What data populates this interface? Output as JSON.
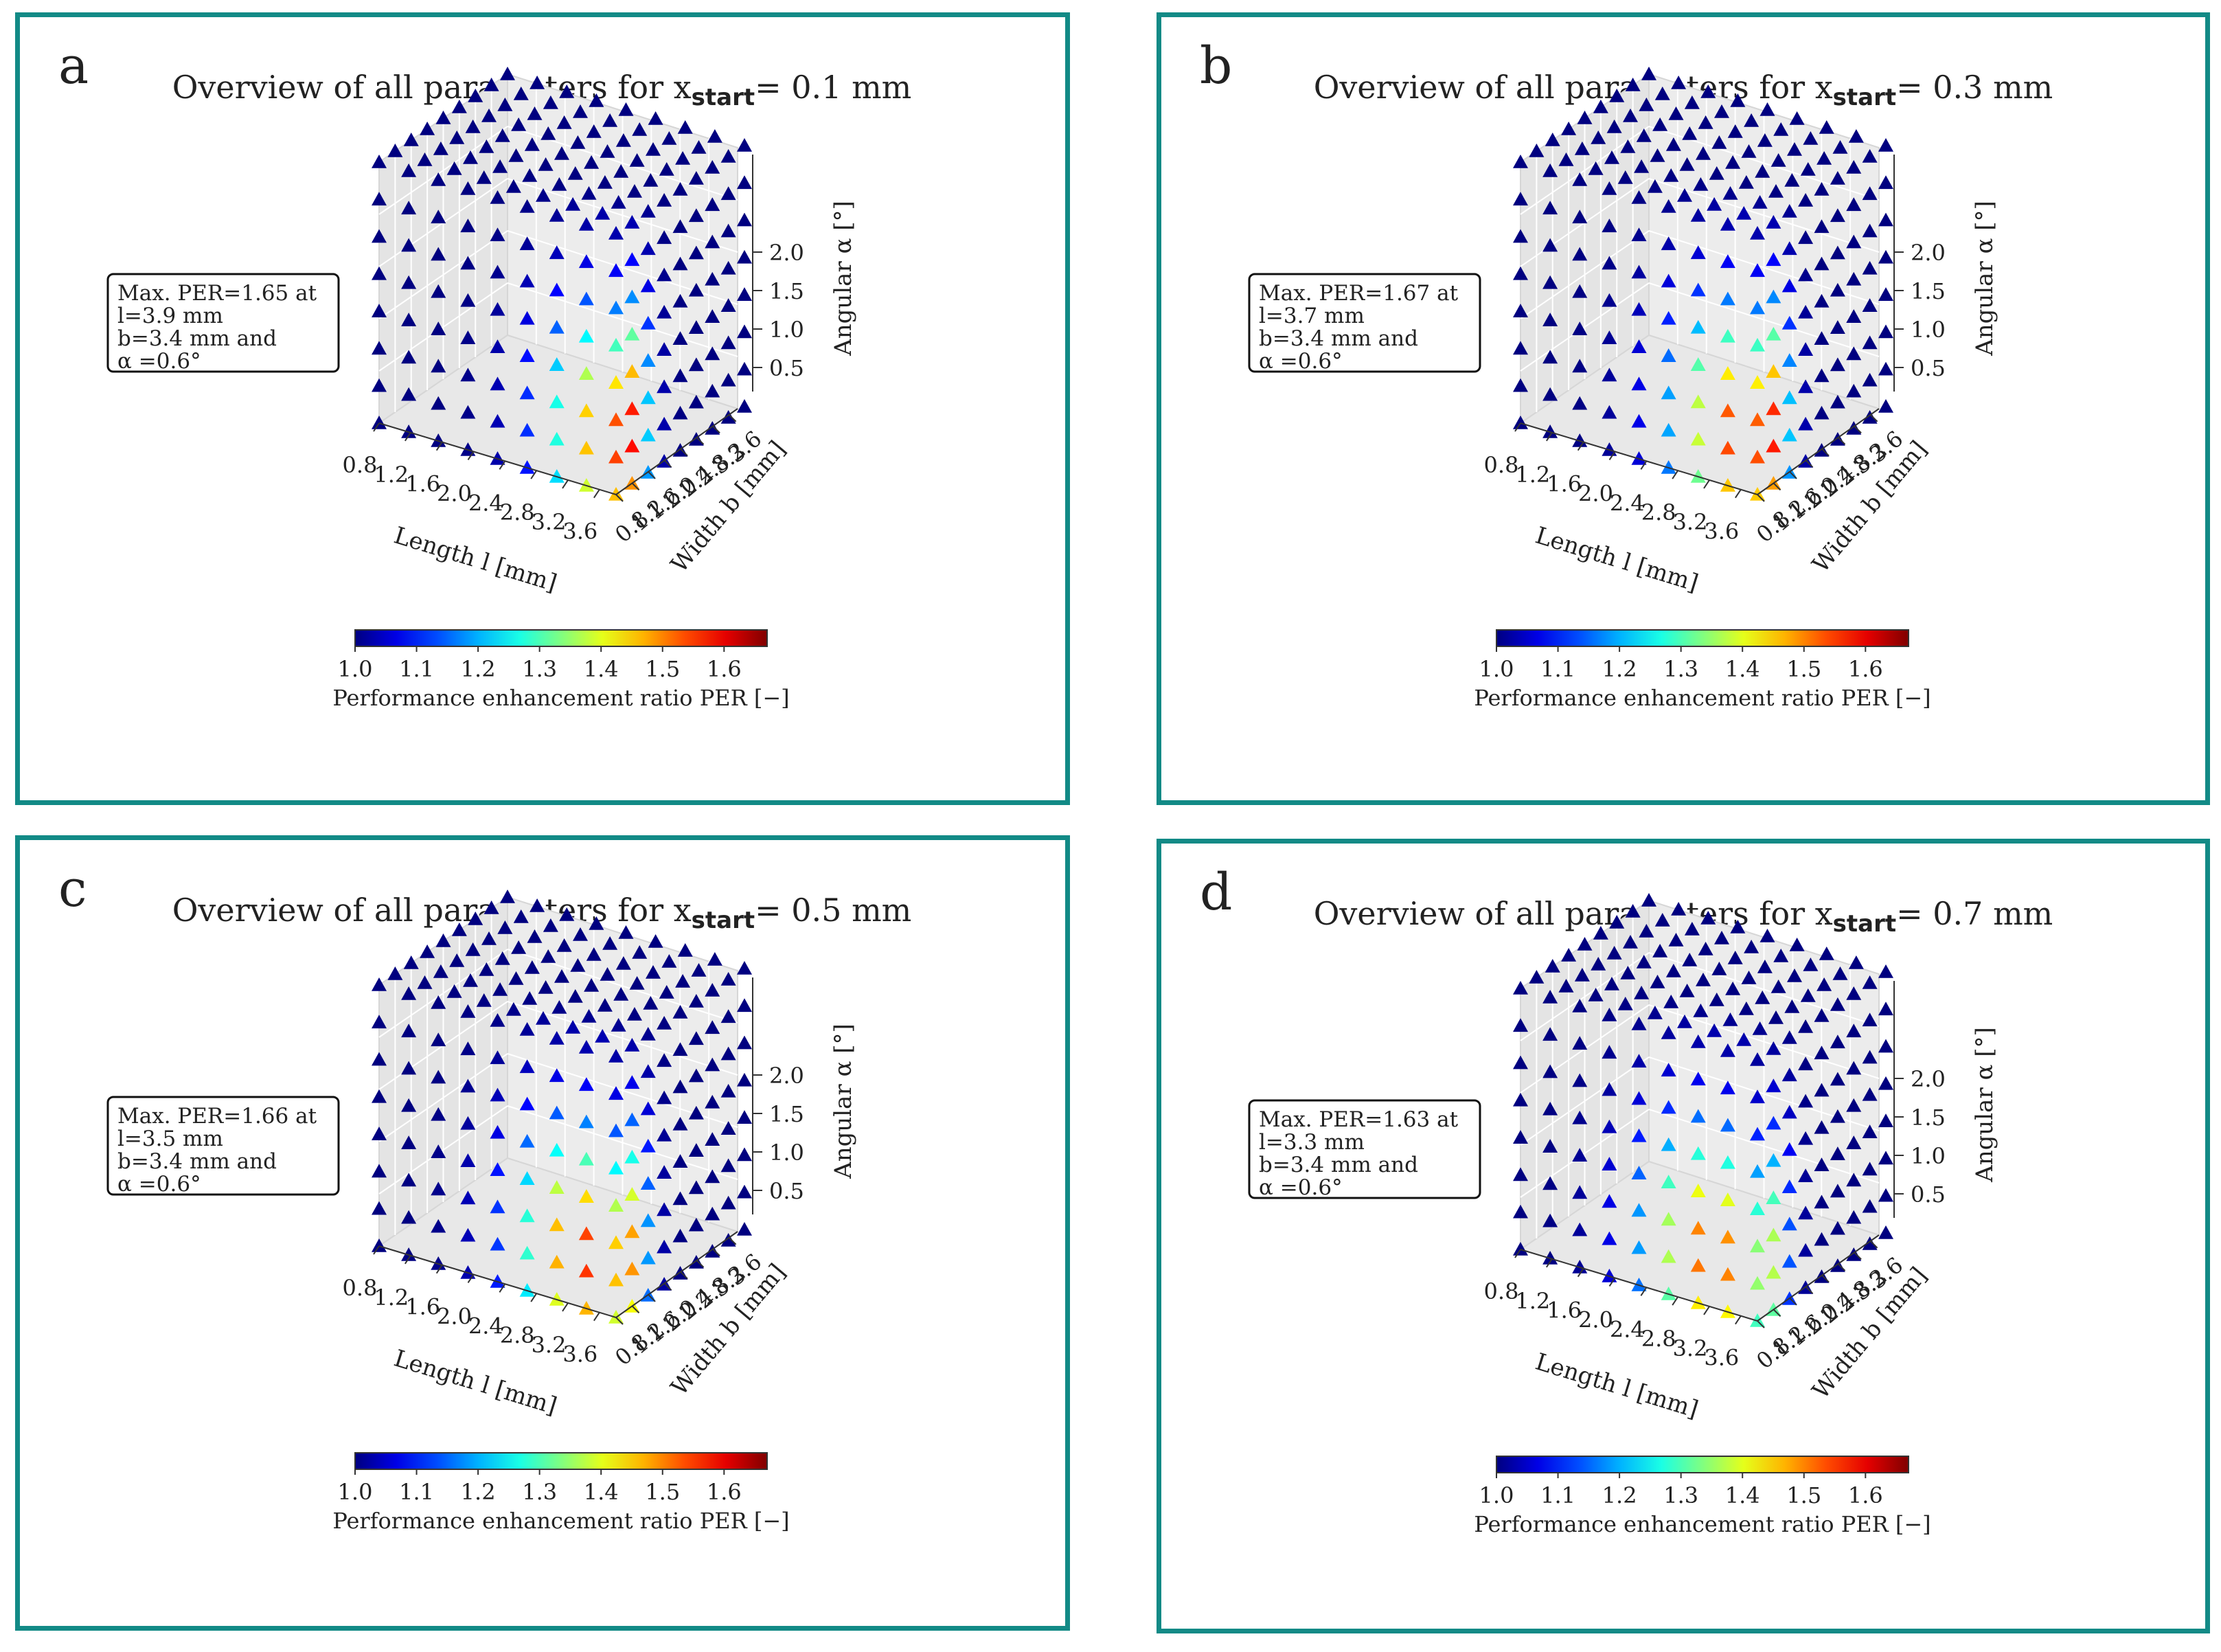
{
  "chart_data": [
    {
      "type": "scatter3d",
      "panel": "a",
      "title_prefix": "Overview of all parameters for x",
      "title_sub": "start",
      "title_suffix": "= 0.1 mm",
      "annotation": [
        "Max. PER=1.65 at",
        "l=3.9 mm",
        "b=3.4 mm and",
        "α =0.6°"
      ],
      "max_point": {
        "PER": 1.65,
        "l": 3.9,
        "b": 3.4,
        "alpha": 0.6
      },
      "xlabel": "Length l [mm]",
      "ylabel": "Width b [mm]",
      "zlabel": "Angular α [°]",
      "xticks": [
        "0.8",
        "1.2",
        "1.6",
        "2.0",
        "2.4",
        "2.8",
        "3.2",
        "3.6"
      ],
      "yticks": [
        "0.8",
        "1.2",
        "1.6",
        "2.0",
        "2.4",
        "2.8",
        "3.2",
        "3.6"
      ],
      "yticks_display": [
        "0.8",
        "1.2",
        "1.6",
        "2.0",
        "2.4",
        "2.8",
        "3.2",
        "3.6"
      ],
      "zticks": [
        "0.5",
        "1.0",
        "1.5",
        "2.0"
      ],
      "xlim": [
        0.8,
        3.9
      ],
      "ylim": [
        0.8,
        3.6
      ],
      "zlim": [
        0.1,
        2.2
      ],
      "colorbar": {
        "ticks": [
          "1.0",
          "1.1",
          "1.2",
          "1.3",
          "1.4",
          "1.5",
          "1.6"
        ],
        "min": 1.0,
        "max": 1.67,
        "label": "Performance enhancement ratio PER [−]",
        "cmap": "jet"
      }
    },
    {
      "type": "scatter3d",
      "panel": "b",
      "title_prefix": "Overview of all parameters for x",
      "title_sub": "start",
      "title_suffix": "= 0.3 mm",
      "annotation": [
        "Max. PER=1.67 at",
        "l=3.7 mm",
        "b=3.4 mm and",
        "α =0.6°"
      ],
      "max_point": {
        "PER": 1.67,
        "l": 3.7,
        "b": 3.4,
        "alpha": 0.6
      },
      "xlabel": "Length l [mm]",
      "ylabel": "Width b [mm]",
      "zlabel": "Angular α [°]",
      "xticks": [
        "0.8",
        "1.2",
        "1.6",
        "2.0",
        "2.4",
        "2.8",
        "3.2",
        "3.6"
      ],
      "yticks": [
        "0.8",
        "1.2",
        "1.6",
        "2.0",
        "2.4",
        "2.8",
        "3.2",
        "3.6"
      ],
      "yticks_display": [
        "0.8",
        "1.2",
        "1.6",
        "2.0",
        "2.4",
        "2.8",
        "3.2",
        "3.6"
      ],
      "zticks": [
        "0.5",
        "1.0",
        "1.5",
        "2.0"
      ],
      "xlim": [
        0.8,
        3.9
      ],
      "ylim": [
        0.8,
        3.6
      ],
      "zlim": [
        0.1,
        2.2
      ],
      "colorbar": {
        "ticks": [
          "1.0",
          "1.1",
          "1.2",
          "1.3",
          "1.4",
          "1.5",
          "1.6"
        ],
        "min": 1.0,
        "max": 1.67,
        "label": "Performance enhancement ratio PER [−]",
        "cmap": "jet"
      }
    },
    {
      "type": "scatter3d",
      "panel": "c",
      "title_prefix": "Overview of all parameters for x",
      "title_sub": "start",
      "title_suffix": "= 0.5 mm",
      "annotation": [
        "Max. PER=1.66 at",
        "l=3.5 mm",
        "b=3.4 mm and",
        "α =0.6°"
      ],
      "max_point": {
        "PER": 1.66,
        "l": 3.5,
        "b": 3.4,
        "alpha": 0.6
      },
      "xlabel": "Length l [mm]",
      "ylabel": "Width b [mm]",
      "zlabel": "Angular α [°]",
      "xticks": [
        "0.8",
        "1.2",
        "1.6",
        "2.0",
        "2.4",
        "2.8",
        "3.2",
        "3.6"
      ],
      "yticks": [
        "0.8",
        "1.2",
        "1.6",
        "2.0",
        "2.4",
        "2.8",
        "3.2",
        "3.6"
      ],
      "yticks_display": [
        "0.8",
        "1.2",
        "1.6",
        "2.0",
        "2.4",
        "2.8",
        "3.2",
        "3.6"
      ],
      "zticks": [
        "0.5",
        "1.0",
        "1.5",
        "2.0"
      ],
      "xlim": [
        0.8,
        3.9
      ],
      "ylim": [
        0.8,
        3.6
      ],
      "zlim": [
        0.1,
        2.2
      ],
      "colorbar": {
        "ticks": [
          "1.0",
          "1.1",
          "1.2",
          "1.3",
          "1.4",
          "1.5",
          "1.6"
        ],
        "min": 1.0,
        "max": 1.67,
        "label": "Performance enhancement ratio PER [−]",
        "cmap": "jet"
      }
    },
    {
      "type": "scatter3d",
      "panel": "d",
      "title_prefix": "Overview of all parameters for x",
      "title_sub": "start",
      "title_suffix": "= 0.7 mm",
      "annotation": [
        "Max. PER=1.63 at",
        "l=3.3 mm",
        "b=3.4 mm and",
        "α =0.6°"
      ],
      "max_point": {
        "PER": 1.63,
        "l": 3.3,
        "b": 3.4,
        "alpha": 0.6
      },
      "xlabel": "Length l [mm]",
      "ylabel": "Width b [mm]",
      "zlabel": "Angular α [°]",
      "xticks": [
        "0.8",
        "1.2",
        "1.6",
        "2.0",
        "2.4",
        "2.8",
        "3.2",
        "3.6"
      ],
      "yticks": [
        "0.8",
        "1.2",
        "1.6",
        "2.0",
        "2.4",
        "2.8",
        "3.2",
        "3.6"
      ],
      "yticks_display": [
        "0.8",
        "1.2",
        "1.6",
        "2.0",
        "2.4",
        "2.8",
        "3.2",
        "3.6"
      ],
      "zticks": [
        "0.5",
        "1.0",
        "1.5",
        "2.0"
      ],
      "xlim": [
        0.8,
        3.9
      ],
      "ylim": [
        0.8,
        3.6
      ],
      "zlim": [
        0.1,
        2.2
      ],
      "colorbar": {
        "ticks": [
          "1.0",
          "1.1",
          "1.2",
          "1.3",
          "1.4",
          "1.5",
          "1.6"
        ],
        "min": 1.0,
        "max": 1.67,
        "label": "Performance enhancement ratio PER [−]",
        "cmap": "jet"
      }
    }
  ],
  "panels": [
    {
      "letter": "a"
    },
    {
      "letter": "b"
    },
    {
      "letter": "c"
    },
    {
      "letter": "d"
    }
  ],
  "colors": {
    "frame": "#128a86",
    "pane": "#ececec",
    "grid": "#ffffff",
    "axis": "#333333"
  }
}
